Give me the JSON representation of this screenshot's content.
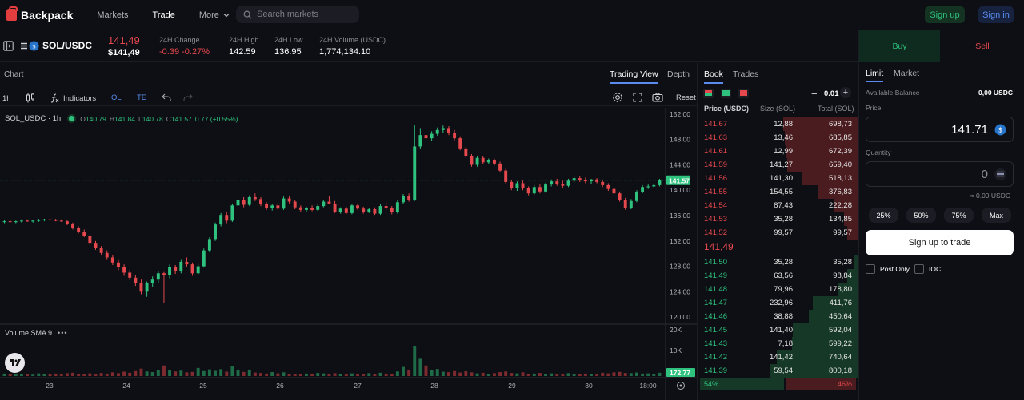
{
  "header": {
    "brand": "Backpack",
    "nav": [
      "Markets",
      "Trade",
      "More"
    ],
    "search_placeholder": "Search markets",
    "signup_label": "Sign up",
    "signin_label": "Sign in"
  },
  "ticker": {
    "symbol": "SOL/USDC",
    "last_price": "141,49",
    "last_price_usd": "$141,49",
    "change_label": "24H Change",
    "change_value": "-0.39 -0.27%",
    "high_label": "24H High",
    "high_value": "142.59",
    "low_label": "24H Low",
    "low_value": "136.95",
    "volume_label": "24H Volume (USDC)",
    "volume_value": "1,774,134.10"
  },
  "chart": {
    "title": "Chart",
    "views": [
      "Trading View",
      "Depth"
    ],
    "interval": "1h",
    "indicators_label": "Indicators",
    "ol_label": "OL",
    "te_label": "TE",
    "reset_label": "Reset",
    "legend_symbol": "SOL_USDC · 1h",
    "legend_o": "140.79",
    "legend_h": "141.84",
    "legend_l": "140.78",
    "legend_c": "141.57",
    "legend_change": "0.77 (+0.55%)",
    "volume_legend": "Volume SMA 9",
    "last_price_tag": "141.57",
    "volume_tag": "172.77",
    "price_ticks": [
      "152.00",
      "148.00",
      "144.00",
      "140.00",
      "136.00",
      "132.00",
      "128.00",
      "124.00",
      "120.00"
    ],
    "volume_ticks": [
      "20K",
      "10K"
    ],
    "time_ticks": [
      "23",
      "24",
      "25",
      "26",
      "27",
      "28",
      "29",
      "30",
      "18:00"
    ]
  },
  "chart_data": {
    "type": "candlestick",
    "ylim": [
      119,
      153
    ],
    "ohlc": [
      [
        135.0,
        135.3,
        134.8,
        135.1
      ],
      [
        135.1,
        135.3,
        134.9,
        135.0
      ],
      [
        135.0,
        135.2,
        134.8,
        135.1
      ],
      [
        135.1,
        135.4,
        134.9,
        135.2
      ],
      [
        135.2,
        135.4,
        135.0,
        135.1
      ],
      [
        135.1,
        135.3,
        134.9,
        135.2
      ],
      [
        135.2,
        135.5,
        135.0,
        135.3
      ],
      [
        135.3,
        135.5,
        135.1,
        135.4
      ],
      [
        135.4,
        135.6,
        135.2,
        135.3
      ],
      [
        135.3,
        135.5,
        135.1,
        135.2
      ],
      [
        135.2,
        135.4,
        135.0,
        135.1
      ],
      [
        135.1,
        135.3,
        134.5,
        134.7
      ],
      [
        134.7,
        134.9,
        133.8,
        134.0
      ],
      [
        134.0,
        134.3,
        133.2,
        133.4
      ],
      [
        133.4,
        133.8,
        132.6,
        132.8
      ],
      [
        132.8,
        133.0,
        131.5,
        131.7
      ],
      [
        131.7,
        132.0,
        130.6,
        130.9
      ],
      [
        130.9,
        131.2,
        129.8,
        130.1
      ],
      [
        130.1,
        130.5,
        129.0,
        129.4
      ],
      [
        129.4,
        129.8,
        128.2,
        128.6
      ],
      [
        128.6,
        129.0,
        127.4,
        127.9
      ],
      [
        127.9,
        128.3,
        126.5,
        127.0
      ],
      [
        127.0,
        127.4,
        125.8,
        126.2
      ],
      [
        126.2,
        126.6,
        124.9,
        125.3
      ],
      [
        125.3,
        125.9,
        123.6,
        124.0
      ],
      [
        124.0,
        125.6,
        123.2,
        125.3
      ],
      [
        125.3,
        126.4,
        124.8,
        125.9
      ],
      [
        125.9,
        127.2,
        125.4,
        126.9
      ],
      [
        126.9,
        127.1,
        122.2,
        126.6
      ],
      [
        126.6,
        128.3,
        126.1,
        127.9
      ],
      [
        127.9,
        128.2,
        126.8,
        127.2
      ],
      [
        127.2,
        129.0,
        126.9,
        128.7
      ],
      [
        128.7,
        129.4,
        127.9,
        128.3
      ],
      [
        128.3,
        128.6,
        126.5,
        126.9
      ],
      [
        126.9,
        128.4,
        126.7,
        128.0
      ],
      [
        128.0,
        130.8,
        127.8,
        130.5
      ],
      [
        130.5,
        132.6,
        130.2,
        132.3
      ],
      [
        132.3,
        134.9,
        132.0,
        134.6
      ],
      [
        134.6,
        136.4,
        134.3,
        136.1
      ],
      [
        136.1,
        136.5,
        134.8,
        135.2
      ],
      [
        135.2,
        137.9,
        135.0,
        137.6
      ],
      [
        137.6,
        138.8,
        137.2,
        138.5
      ],
      [
        138.5,
        138.9,
        137.3,
        137.7
      ],
      [
        137.7,
        139.2,
        137.5,
        138.9
      ],
      [
        138.9,
        139.5,
        138.3,
        138.6
      ],
      [
        138.6,
        138.9,
        137.5,
        137.8
      ],
      [
        137.8,
        138.1,
        136.9,
        137.2
      ],
      [
        137.2,
        137.8,
        136.8,
        137.6
      ],
      [
        137.6,
        138.0,
        136.9,
        137.1
      ],
      [
        137.1,
        139.0,
        136.9,
        138.7
      ],
      [
        138.7,
        139.1,
        137.9,
        138.2
      ],
      [
        138.2,
        138.5,
        137.0,
        137.3
      ],
      [
        137.3,
        137.6,
        136.6,
        136.9
      ],
      [
        136.9,
        137.4,
        136.5,
        137.2
      ],
      [
        137.2,
        137.6,
        136.7,
        136.9
      ],
      [
        136.9,
        137.8,
        136.7,
        137.5
      ],
      [
        137.5,
        138.4,
        137.3,
        138.2
      ],
      [
        138.2,
        139.1,
        137.8,
        137.9
      ],
      [
        137.9,
        138.3,
        136.4,
        136.6
      ],
      [
        136.6,
        137.3,
        136.3,
        137.1
      ],
      [
        137.1,
        137.4,
        136.2,
        136.4
      ],
      [
        136.4,
        137.8,
        136.2,
        137.6
      ],
      [
        137.6,
        137.9,
        136.9,
        137.1
      ],
      [
        137.1,
        137.4,
        136.3,
        136.6
      ],
      [
        136.6,
        137.2,
        136.4,
        137.0
      ],
      [
        137.0,
        137.3,
        136.1,
        136.3
      ],
      [
        136.3,
        137.8,
        136.1,
        137.5
      ],
      [
        137.5,
        138.1,
        136.9,
        137.2
      ],
      [
        137.2,
        137.5,
        136.2,
        136.5
      ],
      [
        136.5,
        138.4,
        136.3,
        138.1
      ],
      [
        138.1,
        139.4,
        137.8,
        139.1
      ],
      [
        139.1,
        139.5,
        138.2,
        138.5
      ],
      [
        138.5,
        150.3,
        138.3,
        146.9
      ],
      [
        146.9,
        149.8,
        146.5,
        148.7
      ],
      [
        148.7,
        149.1,
        147.9,
        148.2
      ],
      [
        148.2,
        149.3,
        147.8,
        148.9
      ],
      [
        148.9,
        149.9,
        148.6,
        149.5
      ],
      [
        149.5,
        150.2,
        149.1,
        149.8
      ],
      [
        149.8,
        150.1,
        148.7,
        149.0
      ],
      [
        149.0,
        149.5,
        147.9,
        148.2
      ],
      [
        148.2,
        148.5,
        146.3,
        146.6
      ],
      [
        146.6,
        146.9,
        145.1,
        145.4
      ],
      [
        145.4,
        145.7,
        143.7,
        144.0
      ],
      [
        144.0,
        145.4,
        143.7,
        145.1
      ],
      [
        145.1,
        145.4,
        144.1,
        144.4
      ],
      [
        144.4,
        145.0,
        144.1,
        144.7
      ],
      [
        144.7,
        145.0,
        143.9,
        144.2
      ],
      [
        144.2,
        144.5,
        142.8,
        143.1
      ],
      [
        143.1,
        143.4,
        141.0,
        141.3
      ],
      [
        141.3,
        141.6,
        140.0,
        140.3
      ],
      [
        140.3,
        141.4,
        139.9,
        141.1
      ],
      [
        141.1,
        141.5,
        140.0,
        140.3
      ],
      [
        140.3,
        140.6,
        139.2,
        139.5
      ],
      [
        139.5,
        140.8,
        139.3,
        140.5
      ],
      [
        140.5,
        140.9,
        139.5,
        139.8
      ],
      [
        139.8,
        141.2,
        139.6,
        140.9
      ],
      [
        140.9,
        141.7,
        140.6,
        141.4
      ],
      [
        141.4,
        141.8,
        140.7,
        141.0
      ],
      [
        141.0,
        141.5,
        140.4,
        140.7
      ],
      [
        140.7,
        141.8,
        140.5,
        141.5
      ],
      [
        141.5,
        142.2,
        141.2,
        141.9
      ],
      [
        141.9,
        142.3,
        141.3,
        141.6
      ],
      [
        141.6,
        142.0,
        141.1,
        141.4
      ],
      [
        141.4,
        141.8,
        141.0,
        141.7
      ],
      [
        141.7,
        141.9,
        141.1,
        141.3
      ],
      [
        141.3,
        141.6,
        140.5,
        140.8
      ],
      [
        140.8,
        141.1,
        139.9,
        140.2
      ],
      [
        140.2,
        140.5,
        139.2,
        139.5
      ],
      [
        139.5,
        139.8,
        138.2,
        138.5
      ],
      [
        138.5,
        138.8,
        136.9,
        137.2
      ],
      [
        137.2,
        138.6,
        137.0,
        138.3
      ],
      [
        138.3,
        140.0,
        138.1,
        139.7
      ],
      [
        139.7,
        140.8,
        139.5,
        140.5
      ],
      [
        140.5,
        140.9,
        140.2,
        140.6
      ],
      [
        140.6,
        141.1,
        140.3,
        140.8
      ],
      [
        140.8,
        141.8,
        140.6,
        141.6
      ]
    ],
    "volume": [
      1.2,
      0.8,
      1.0,
      0.9,
      1.1,
      0.7,
      1.3,
      0.9,
      1.0,
      1.2,
      0.8,
      1.4,
      1.6,
      1.1,
      0.9,
      1.3,
      1.0,
      1.5,
      1.2,
      1.8,
      1.4,
      2.1,
      1.6,
      2.4,
      3.6,
      2.2,
      1.9,
      2.8,
      5.1,
      3.0,
      2.2,
      2.6,
      1.8,
      2.0,
      3.9,
      2.4,
      3.2,
      2.5,
      3.3,
      2.1,
      4.6,
      2.9,
      2.0,
      3.1,
      1.7,
      1.5,
      1.2,
      1.9,
      1.3,
      1.8,
      1.1,
      1.0,
      0.9,
      1.2,
      1.0,
      1.5,
      1.3,
      1.1,
      1.4,
      0.8,
      1.0,
      1.3,
      0.9,
      1.1,
      1.4,
      1.0,
      1.6,
      1.2,
      0.9,
      2.2,
      4.4,
      3.1,
      14.6,
      8.3,
      5.1,
      2.8,
      3.4,
      2.1,
      1.9,
      2.4,
      1.7,
      2.3,
      1.8,
      1.3,
      1.6,
      1.1,
      1.4,
      1.9,
      2.2,
      1.5,
      1.3,
      1.8,
      1.1,
      1.2,
      1.5,
      1.0,
      1.3,
      0.9,
      1.1,
      1.4,
      0.8,
      1.0,
      1.2,
      0.9,
      1.1,
      1.6,
      1.3,
      1.8,
      2.0,
      1.5,
      1.4,
      1.7,
      1.2,
      1.3,
      1.1,
      1.6
    ]
  },
  "book": {
    "tabs": [
      "Book",
      "Trades"
    ],
    "tick": "0.01",
    "headers": [
      "Price (USDC)",
      "Size (SOL)",
      "Total (SOL)"
    ],
    "asks": [
      {
        "price": "141.67",
        "size": "12,88",
        "total": "698,73",
        "depth": 0.85
      },
      {
        "price": "141.63",
        "size": "13,46",
        "total": "685,85",
        "depth": 0.83
      },
      {
        "price": "141.61",
        "size": "12,99",
        "total": "672,39",
        "depth": 0.81
      },
      {
        "price": "141.59",
        "size": "141,27",
        "total": "659,40",
        "depth": 0.8
      },
      {
        "price": "141.56",
        "size": "141,30",
        "total": "518,13",
        "depth": 0.63
      },
      {
        "price": "141.55",
        "size": "154,55",
        "total": "376,83",
        "depth": 0.46
      },
      {
        "price": "141.54",
        "size": "87,43",
        "total": "222,28",
        "depth": 0.27
      },
      {
        "price": "141.53",
        "size": "35,28",
        "total": "134,85",
        "depth": 0.16
      },
      {
        "price": "141.52",
        "size": "99,57",
        "total": "99,57",
        "depth": 0.12
      }
    ],
    "mid_price": "141,49",
    "bids": [
      {
        "price": "141.50",
        "size": "35,28",
        "total": "35,28",
        "depth": 0.04
      },
      {
        "price": "141.49",
        "size": "63,56",
        "total": "98,84",
        "depth": 0.12
      },
      {
        "price": "141.48",
        "size": "79,96",
        "total": "178,80",
        "depth": 0.22
      },
      {
        "price": "141.47",
        "size": "232,96",
        "total": "411,76",
        "depth": 0.51
      },
      {
        "price": "141.46",
        "size": "38,88",
        "total": "450,64",
        "depth": 0.56
      },
      {
        "price": "141.45",
        "size": "141,40",
        "total": "592,04",
        "depth": 0.74
      },
      {
        "price": "141.43",
        "size": "7,18",
        "total": "599,22",
        "depth": 0.75
      },
      {
        "price": "141.42",
        "size": "141,42",
        "total": "740,64",
        "depth": 0.92
      },
      {
        "price": "141.39",
        "size": "59,54",
        "total": "800,18",
        "depth": 1.0
      }
    ],
    "bid_ratio": "54%",
    "ask_ratio": "46%",
    "bid_fraction": 0.54
  },
  "trade": {
    "buy_label": "Buy",
    "sell_label": "Sell",
    "order_types": [
      "Limit",
      "Market"
    ],
    "balance_label": "Available Balance",
    "balance_value": "0,00 USDC",
    "price_label": "Price",
    "price_value": "141.71",
    "quantity_label": "Quantity",
    "quantity_value": "0",
    "approx_value": "≈ 0.00 USDC",
    "percent_buttons": [
      "25%",
      "50%",
      "75%",
      "Max"
    ],
    "cta_label": "Sign up to trade",
    "post_only_label": "Post Only",
    "ioc_label": "IOC"
  },
  "colors": {
    "up": "#2ec27e",
    "down": "#e5484d",
    "bg": "#0e0f14",
    "panel": "#1c1d24",
    "accent_blue": "#5a8cf0"
  }
}
